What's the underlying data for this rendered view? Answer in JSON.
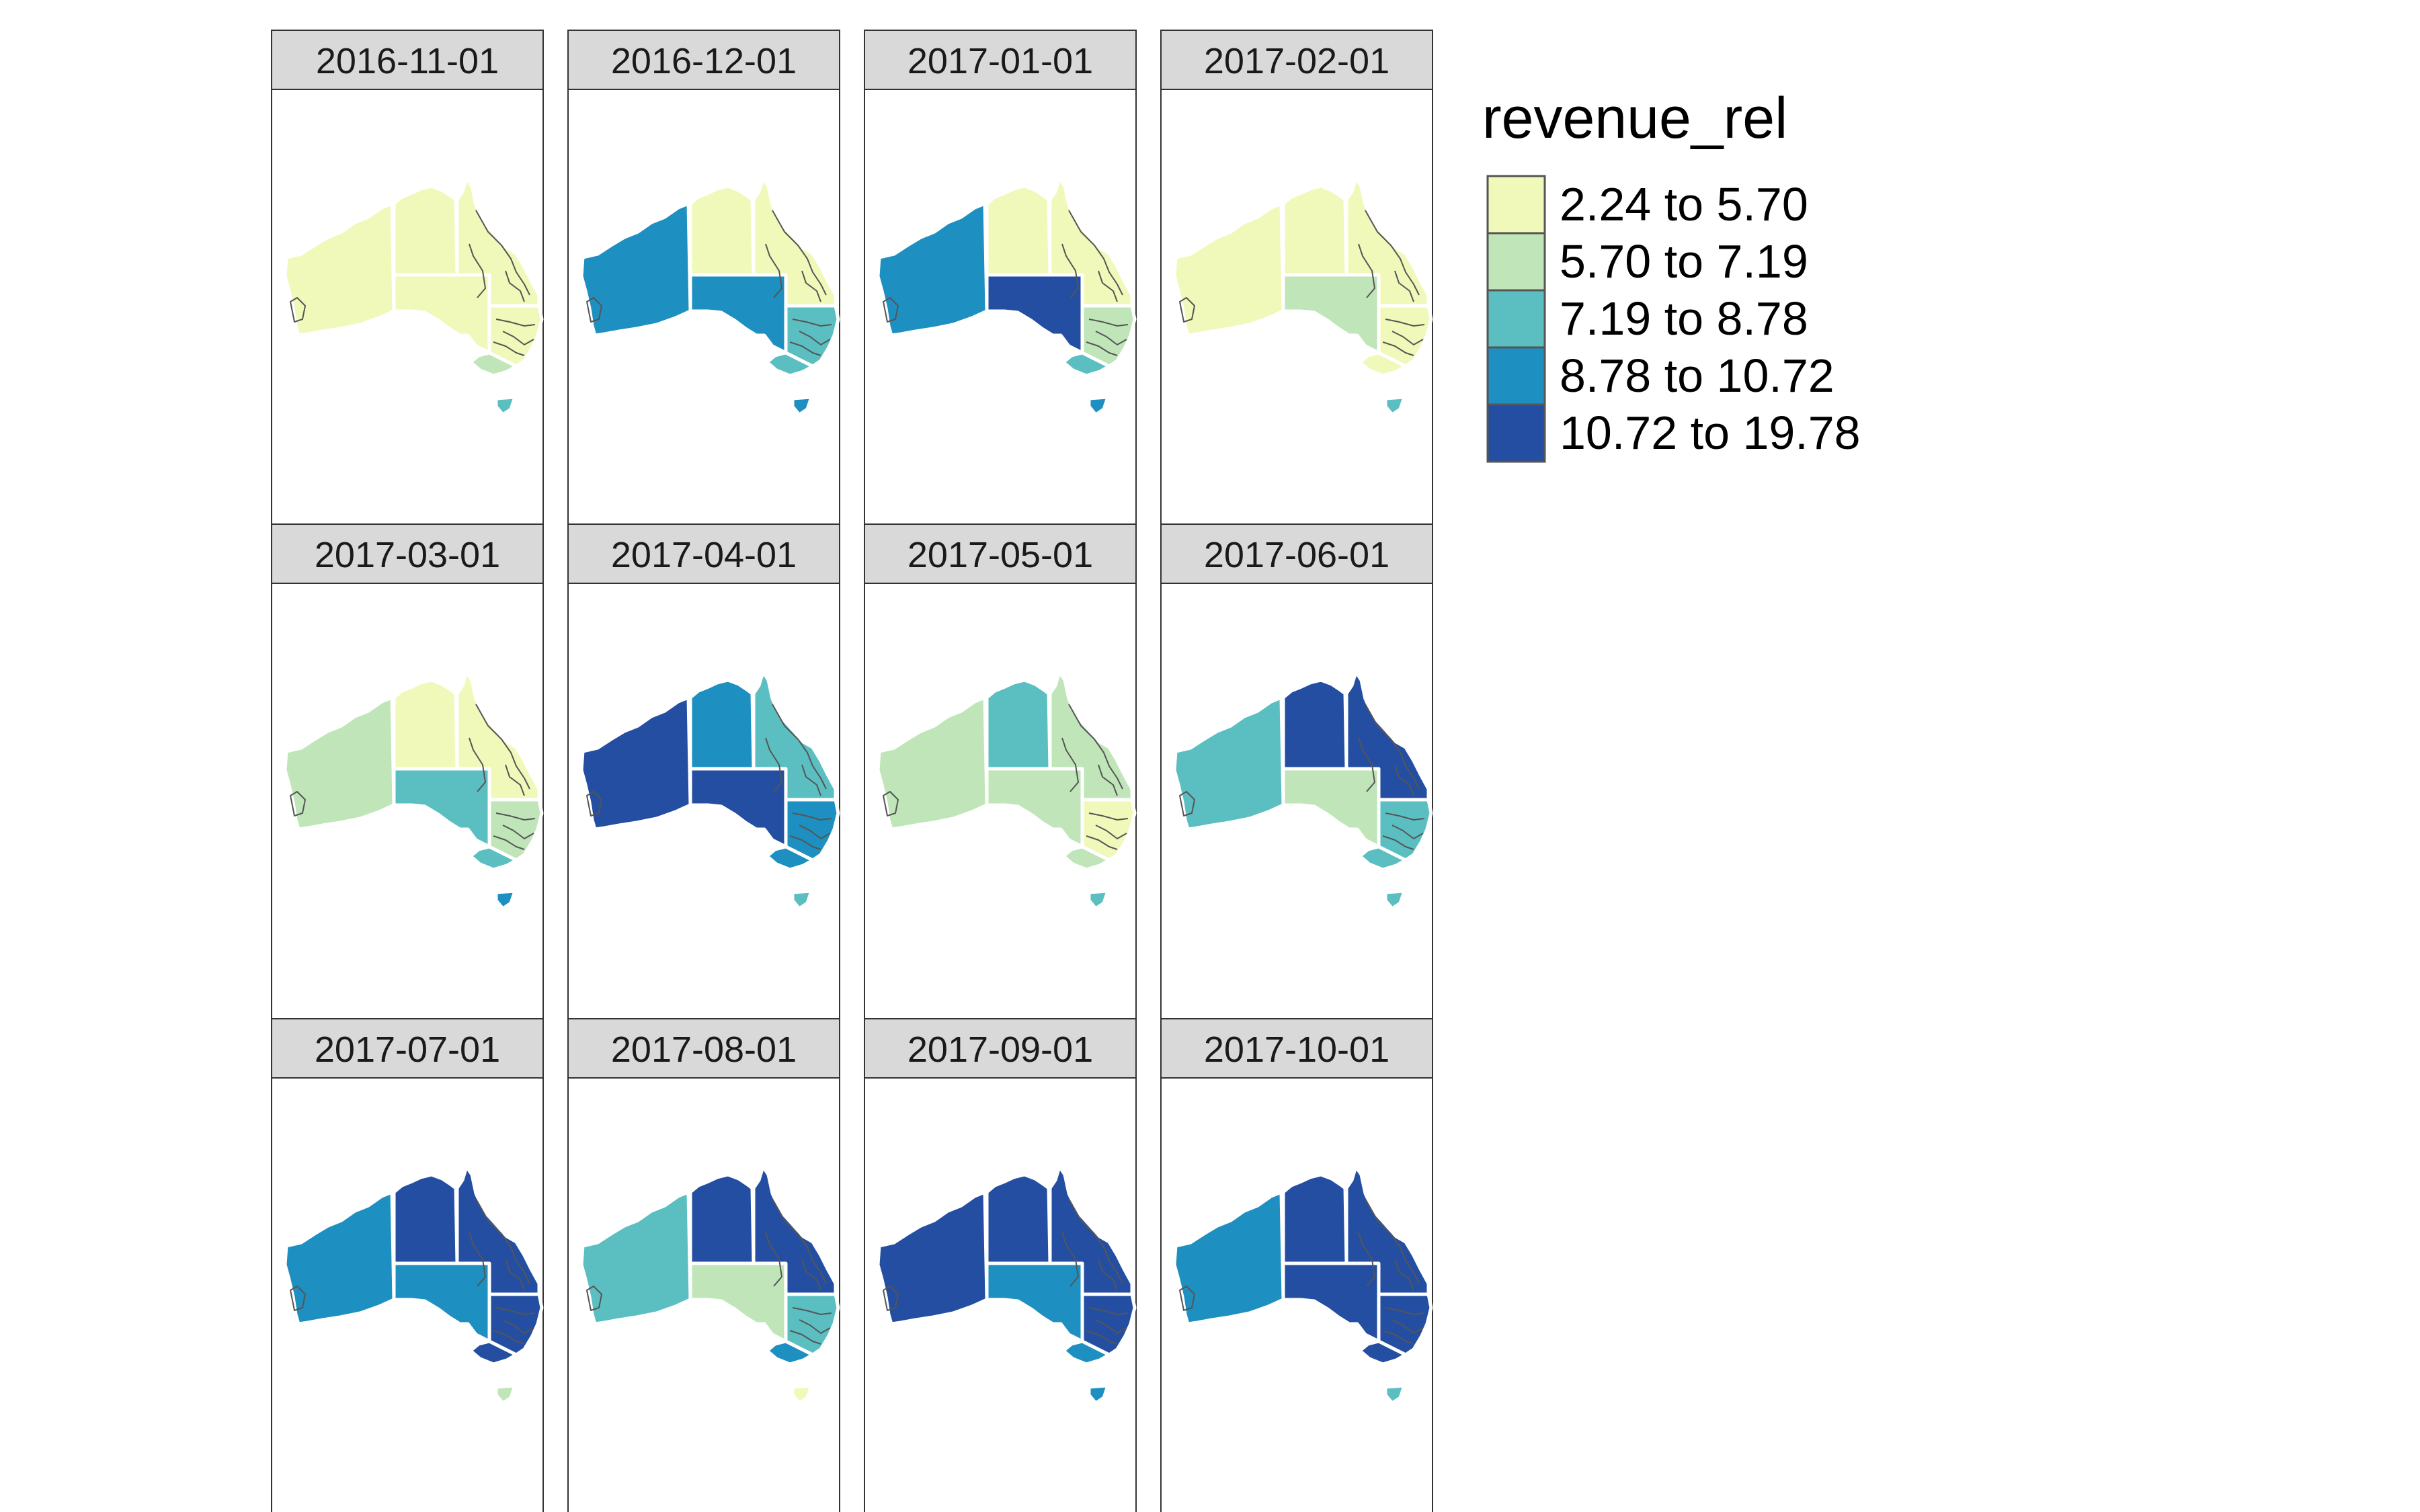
{
  "facet_dates": [
    "2016-11-01",
    "2016-12-01",
    "2017-01-01",
    "2017-02-01",
    "2017-03-01",
    "2017-04-01",
    "2017-05-01",
    "2017-06-01",
    "2017-07-01",
    "2017-08-01",
    "2017-09-01",
    "2017-10-01"
  ],
  "legend": {
    "title": "revenue_rel",
    "classes": [
      {
        "label": "2.24 to 5.70",
        "color": "#f0f9b9"
      },
      {
        "label": "5.70 to 7.19",
        "color": "#bfe5b8"
      },
      {
        "label": "7.19 to 8.78",
        "color": "#5bbfc2"
      },
      {
        "label": "8.78 to 10.72",
        "color": "#1e8fc1"
      },
      {
        "label": "10.72 to 19.78",
        "color": "#234ea2"
      }
    ]
  },
  "map": {
    "regions": [
      "WA",
      "NT",
      "SA",
      "QLD",
      "NSW",
      "VIC",
      "TAS"
    ],
    "class_by_facet": [
      {
        "WA": 0,
        "NT": 0,
        "SA": 0,
        "QLD": 0,
        "NSW": 0,
        "VIC": 1,
        "TAS": 2
      },
      {
        "WA": 3,
        "NT": 0,
        "SA": 3,
        "QLD": 0,
        "NSW": 2,
        "VIC": 2,
        "TAS": 3
      },
      {
        "WA": 3,
        "NT": 0,
        "SA": 4,
        "QLD": 0,
        "NSW": 1,
        "VIC": 2,
        "TAS": 3
      },
      {
        "WA": 0,
        "NT": 0,
        "SA": 1,
        "QLD": 0,
        "NSW": 0,
        "VIC": 0,
        "TAS": 2
      },
      {
        "WA": 1,
        "NT": 0,
        "SA": 2,
        "QLD": 0,
        "NSW": 1,
        "VIC": 2,
        "TAS": 3
      },
      {
        "WA": 4,
        "NT": 3,
        "SA": 4,
        "QLD": 2,
        "NSW": 3,
        "VIC": 3,
        "TAS": 2
      },
      {
        "WA": 1,
        "NT": 2,
        "SA": 1,
        "QLD": 1,
        "NSW": 0,
        "VIC": 1,
        "TAS": 2
      },
      {
        "WA": 2,
        "NT": 4,
        "SA": 1,
        "QLD": 4,
        "NSW": 2,
        "VIC": 2,
        "TAS": 2
      },
      {
        "WA": 3,
        "NT": 4,
        "SA": 3,
        "QLD": 4,
        "NSW": 4,
        "VIC": 4,
        "TAS": 1
      },
      {
        "WA": 2,
        "NT": 4,
        "SA": 1,
        "QLD": 4,
        "NSW": 2,
        "VIC": 3,
        "TAS": 0
      },
      {
        "WA": 4,
        "NT": 4,
        "SA": 3,
        "QLD": 4,
        "NSW": 4,
        "VIC": 3,
        "TAS": 3
      },
      {
        "WA": 3,
        "NT": 4,
        "SA": 4,
        "QLD": 4,
        "NSW": 4,
        "VIC": 4,
        "TAS": 2
      }
    ]
  }
}
